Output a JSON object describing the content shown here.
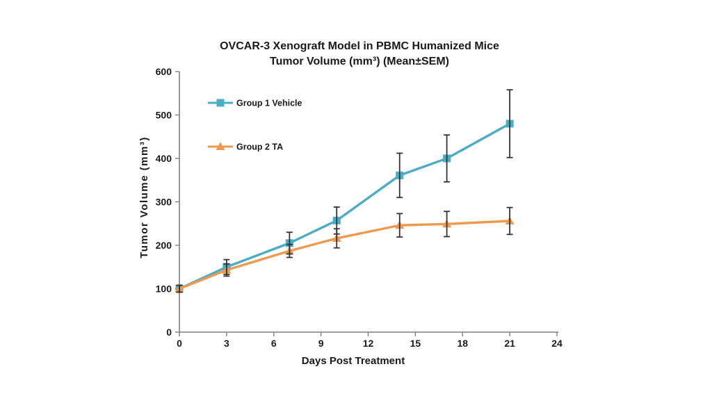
{
  "page": {
    "background_color": "#ffffff"
  },
  "chart_data": {
    "type": "line",
    "title_line1": "OVCAR-3 Xenograft Model in PBMC Humanized Mice",
    "title_line2": "Tumor Volume (mm³) (Mean±SEM)",
    "xlabel": "Days Post Treatment",
    "ylabel": "Tumor Volume (mm³)",
    "xlim": [
      0,
      24
    ],
    "ylim": [
      0,
      600
    ],
    "xticks": [
      0,
      3,
      6,
      9,
      12,
      15,
      18,
      21,
      24
    ],
    "yticks": [
      0,
      100,
      200,
      300,
      400,
      500,
      600
    ],
    "grid": false,
    "legend_position": "inside-top-left",
    "error_bars": "SEM",
    "x": [
      0,
      3,
      7,
      10,
      14,
      17,
      21
    ],
    "series": [
      {
        "name": "Group 1 Vehicle",
        "color": "#4BACC6",
        "marker": "square",
        "values": [
          100,
          150,
          205,
          257,
          361,
          400,
          480
        ],
        "sem": [
          8,
          17,
          25,
          31,
          51,
          54,
          78
        ]
      },
      {
        "name": "Group 2 TA",
        "color": "#EE9A4E",
        "marker": "triangle",
        "values": [
          100,
          143,
          187,
          216,
          246,
          249,
          256
        ],
        "sem": [
          8,
          14,
          15,
          22,
          27,
          29,
          31
        ]
      }
    ],
    "colors": {
      "axis": "#7f7f7f",
      "error_bar": "#333333",
      "text": "#1a1a1a"
    }
  }
}
